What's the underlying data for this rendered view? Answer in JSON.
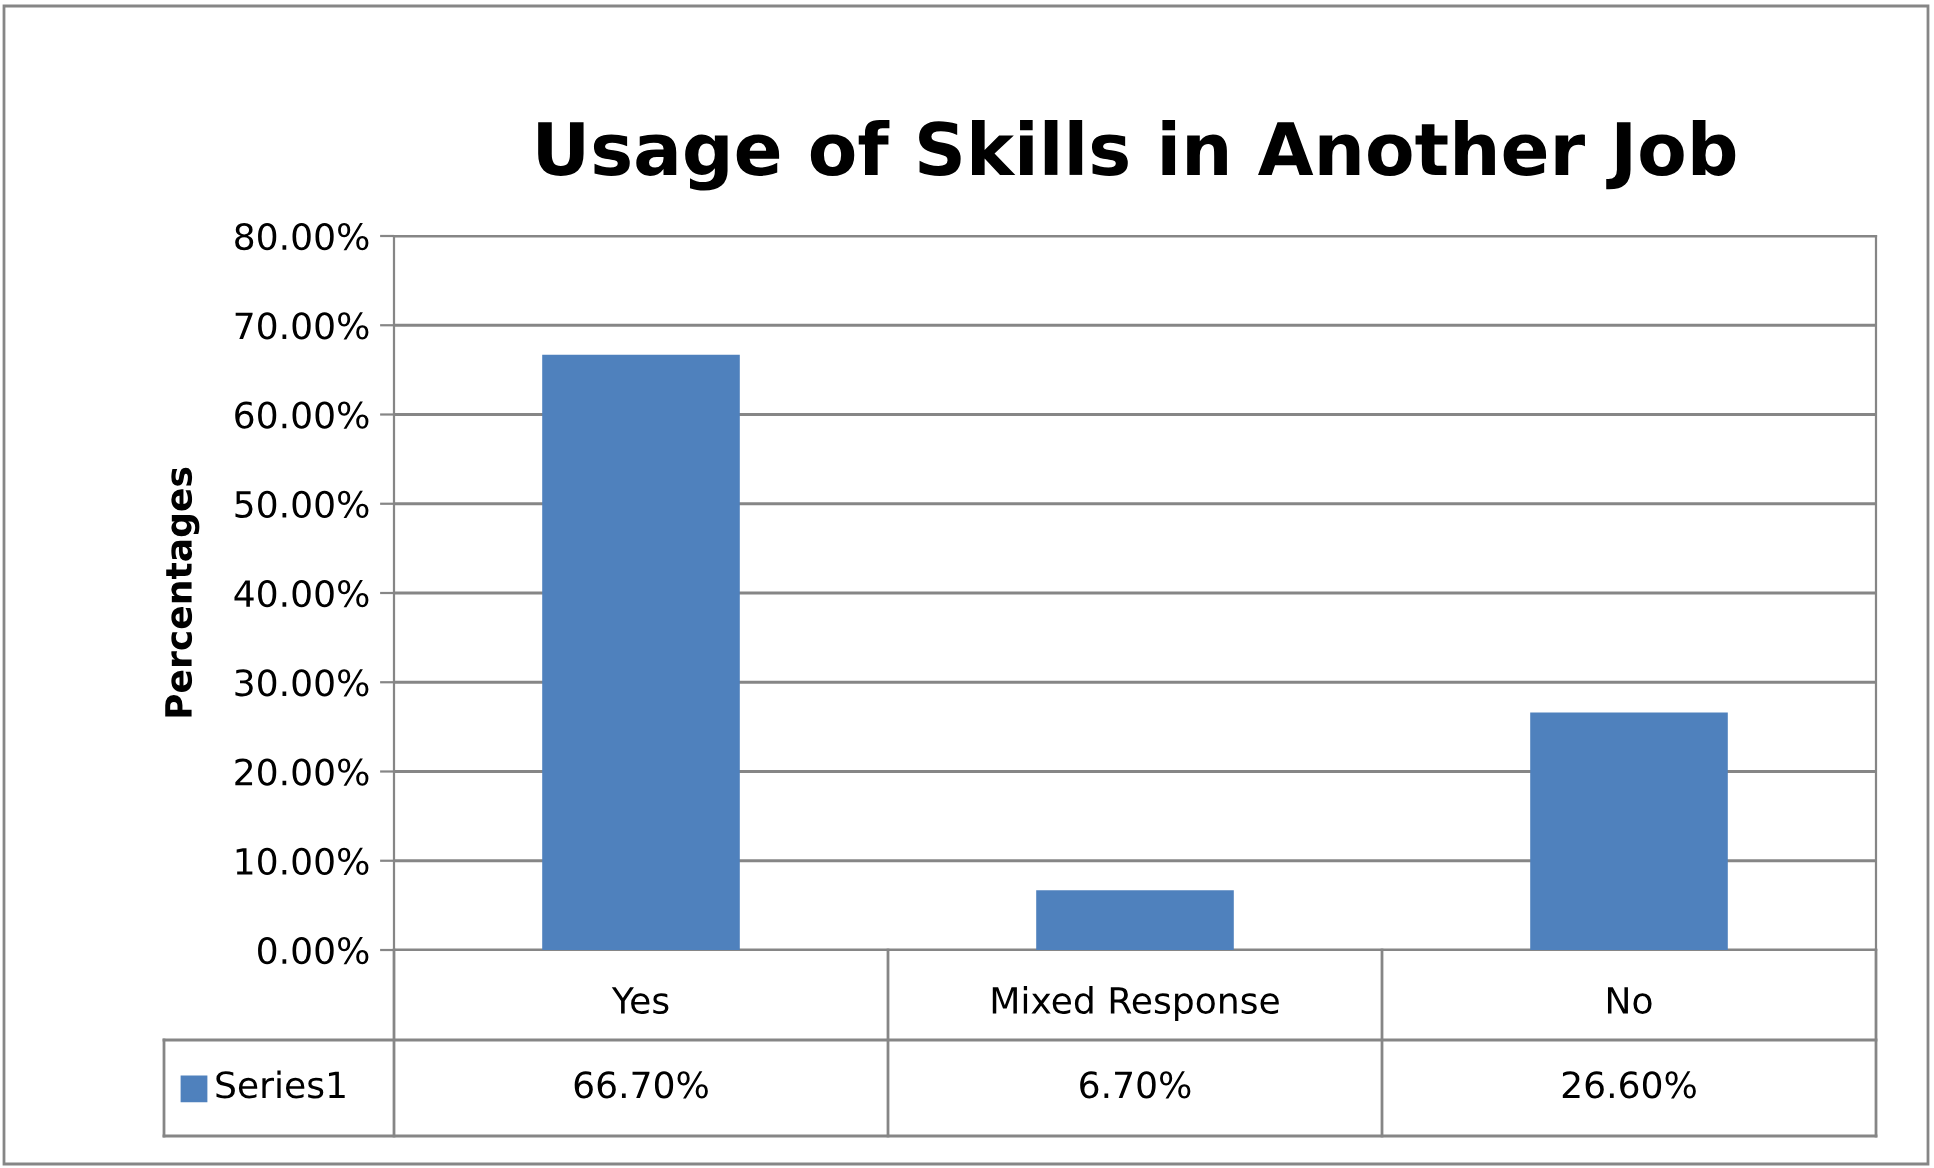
{
  "chart_data": {
    "type": "bar",
    "title": "Usage of Skills in Another Job",
    "ylabel": "Percentages",
    "categories": [
      "Yes",
      "Mixed Response",
      "No"
    ],
    "series": [
      {
        "name": "Series1",
        "color": "#4f81bd",
        "values": [
          66.7,
          6.7,
          26.6
        ],
        "value_labels": [
          "66.70%",
          "6.70%",
          "26.60%"
        ]
      }
    ],
    "ylim": [
      0,
      80
    ],
    "yticks": [
      {
        "value": 0,
        "label": "0.00%"
      },
      {
        "value": 10,
        "label": "10.00%"
      },
      {
        "value": 20,
        "label": "20.00%"
      },
      {
        "value": 30,
        "label": "30.00%"
      },
      {
        "value": 40,
        "label": "40.00%"
      },
      {
        "value": 50,
        "label": "50.00%"
      },
      {
        "value": 60,
        "label": "60.00%"
      },
      {
        "value": 70,
        "label": "70.00%"
      },
      {
        "value": 80,
        "label": "80.00%"
      }
    ],
    "grid": "y",
    "legend": "bottom left"
  }
}
